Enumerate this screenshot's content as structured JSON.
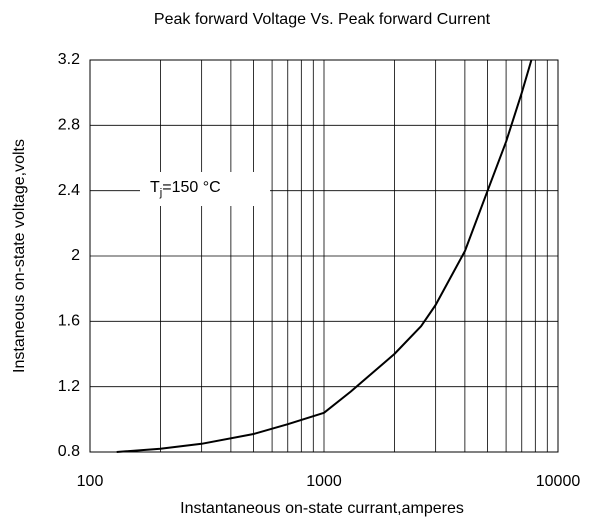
{
  "chart_data": {
    "type": "line",
    "title": "Peak forward Voltage Vs. Peak forward Current",
    "x_label": "Instantaneous on-state currant,amperes",
    "y_label": "Instaneous on-state voltage,volts",
    "log_x": true,
    "grid": true,
    "xlim": [
      100,
      10000
    ],
    "xticks": [
      100,
      1000,
      10000
    ],
    "xminorticks": [
      200,
      300,
      400,
      500,
      600,
      700,
      800,
      900,
      2000,
      3000,
      4000,
      5000,
      6000,
      7000,
      8000,
      9000
    ],
    "ylim": [
      0.8,
      3.2
    ],
    "yticks": [
      0.8,
      1.2,
      1.6,
      2,
      2.4,
      2.8,
      3.2
    ],
    "annotation": {
      "main": "T",
      "subscript": "j",
      "suffix": "=150 °C"
    },
    "series": [
      {
        "color": "#000000",
        "x": [
          130,
          200,
          300,
          500,
          700,
          1000,
          1300,
          2000,
          2600,
          3000,
          4000,
          5000,
          6000,
          7000,
          7700
        ],
        "values": [
          0.8,
          0.82,
          0.85,
          0.91,
          0.97,
          1.04,
          1.17,
          1.4,
          1.57,
          1.7,
          2.03,
          2.4,
          2.7,
          3.0,
          3.2
        ]
      }
    ]
  }
}
